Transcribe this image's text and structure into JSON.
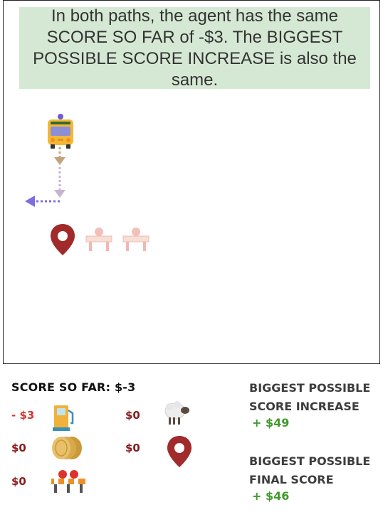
{
  "banner": {
    "text": "In both paths, the agent has the same SCORE SO FAR of -$3. The BIGGEST POSSIBLE SCORE INCREASE is also the same."
  },
  "board": {
    "icons": [
      "bus-icon",
      "arrow-down-icon",
      "arrow-left-icon",
      "location-pin-icon",
      "barrier-icon",
      "barrier-icon"
    ]
  },
  "score_panel": {
    "title": "SCORE SO FAR: $-3",
    "items": [
      {
        "icon": "gas-pump-icon",
        "value": "- $3"
      },
      {
        "icon": "sheep-icon",
        "value": "$0"
      },
      {
        "icon": "coins-icon",
        "value": "$0"
      },
      {
        "icon": "location-pin-icon",
        "value": "$0"
      },
      {
        "icon": "barrier-icon",
        "value": "$0"
      }
    ]
  },
  "increase": {
    "label_line1": "BIGGEST POSSIBLE",
    "label_line2": "SCORE INCREASE",
    "value": "+ $49"
  },
  "final": {
    "label_line1": "BIGGEST POSSIBLE",
    "label_line2": "FINAL SCORE",
    "value": "+ $46"
  },
  "colors": {
    "banner_bg": "#d5e8d4",
    "negative": "#d9342b",
    "zero": "#8b1a1a",
    "positive": "#3f9a2a",
    "pin": "#a12b2b",
    "arrow_down": "#c2a37a",
    "arrow_left": "#7b6fe0"
  }
}
